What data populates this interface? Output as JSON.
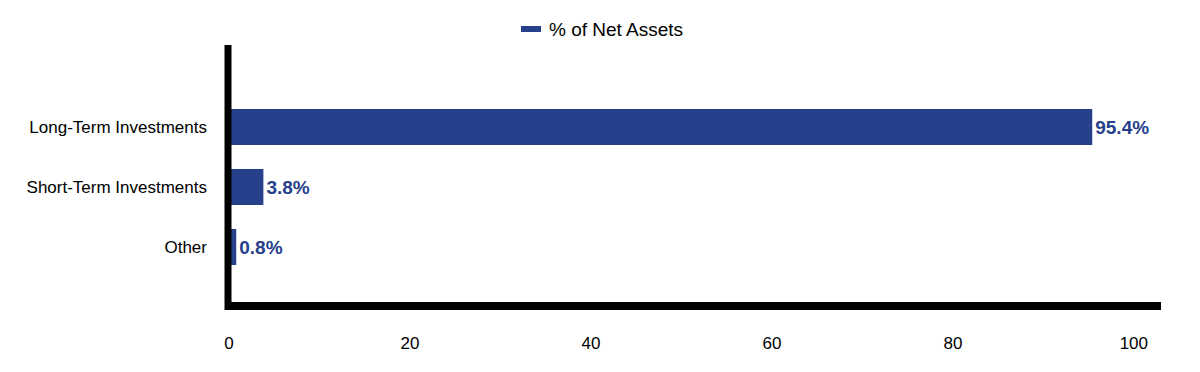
{
  "chart_data": {
    "type": "bar",
    "orientation": "horizontal",
    "categories": [
      "Long-Term Investments",
      "Short-Term Investments",
      "Other"
    ],
    "series": [
      {
        "name": "% of Net Assets",
        "color": "#26408b",
        "values": [
          95.4,
          3.8,
          0.8
        ],
        "value_labels": [
          "95.4%",
          "3.8%",
          "0.8%"
        ]
      }
    ],
    "xlim": [
      0,
      103
    ],
    "xticks": [
      0,
      20,
      40,
      60,
      80,
      100
    ],
    "grid": false,
    "legend": "top",
    "data_labels": true
  }
}
